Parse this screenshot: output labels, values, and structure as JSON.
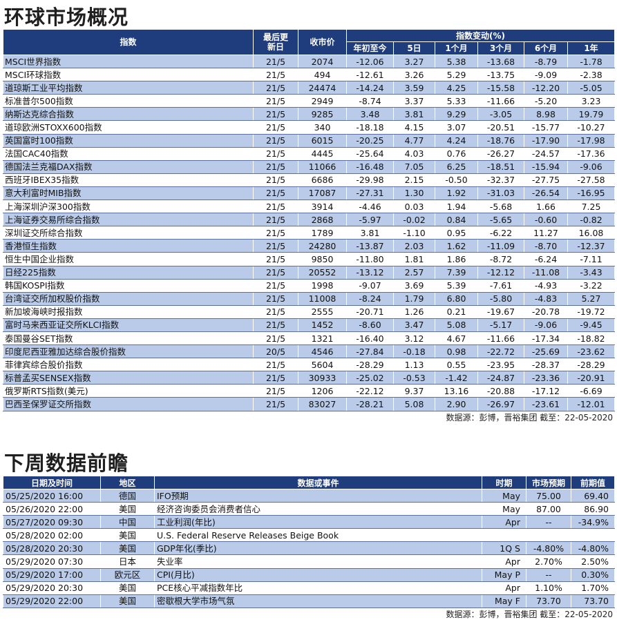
{
  "section1": {
    "title": "环球市场概况",
    "source": "数据源：彭博，晋裕集团 截至：22-05-2020",
    "headers": {
      "index": "指数",
      "last_update": "最后更新日",
      "close": "收市价",
      "change_group": "指数变动(%)",
      "ytd": "年初至今",
      "d5": "5日",
      "m1": "1个月",
      "m3": "3个月",
      "m6": "6个月",
      "y1": "1年"
    },
    "rows": [
      [
        "MSCI世界指数",
        "21/5",
        "2074",
        "-12.06",
        "3.27",
        "5.38",
        "-13.68",
        "-8.79",
        "-1.78"
      ],
      [
        "MSCI环球指数",
        "21/5",
        "494",
        "-12.61",
        "3.26",
        "5.29",
        "-13.75",
        "-9.09",
        "-2.38"
      ],
      [
        "道琼斯工业平均指数",
        "21/5",
        "24474",
        "-14.24",
        "3.59",
        "4.25",
        "-15.58",
        "-12.20",
        "-5.05"
      ],
      [
        "标准普尔500指数",
        "21/5",
        "2949",
        "-8.74",
        "3.37",
        "5.33",
        "-11.66",
        "-5.20",
        "3.23"
      ],
      [
        "纳斯达克综合指数",
        "21/5",
        "9285",
        "3.48",
        "3.81",
        "9.29",
        "-3.05",
        "8.98",
        "19.79"
      ],
      [
        "道琼欧洲STOXX600指数",
        "21/5",
        "340",
        "-18.18",
        "4.15",
        "3.07",
        "-20.51",
        "-15.77",
        "-10.27"
      ],
      [
        "英国富时100指数",
        "21/5",
        "6015",
        "-20.25",
        "4.77",
        "4.24",
        "-18.76",
        "-17.90",
        "-17.98"
      ],
      [
        "法国CAC40指数",
        "21/5",
        "4445",
        "-25.64",
        "4.03",
        "0.76",
        "-26.27",
        "-24.57",
        "-17.36"
      ],
      [
        "德国法兰克福DAX指数",
        "21/5",
        "11066",
        "-16.48",
        "7.05",
        "6.25",
        "-18.51",
        "-15.94",
        "-9.06"
      ],
      [
        "西班牙IBEX35指数",
        "21/5",
        "6686",
        "-29.98",
        "2.15",
        "-0.50",
        "-32.37",
        "-27.75",
        "-27.58"
      ],
      [
        "意大利富时MIB指数",
        "21/5",
        "17087",
        "-27.31",
        "1.30",
        "1.92",
        "-31.03",
        "-26.54",
        "-16.95"
      ],
      [
        "上海深圳沪深300指数",
        "21/5",
        "3914",
        "-4.46",
        "0.03",
        "1.94",
        "-5.68",
        "1.66",
        "7.25"
      ],
      [
        "上海证券交易所综合指数",
        "21/5",
        "2868",
        "-5.97",
        "-0.02",
        "0.84",
        "-5.65",
        "-0.60",
        "-0.82"
      ],
      [
        "深圳证交所综合指数",
        "21/5",
        "1789",
        "3.81",
        "-1.10",
        "0.95",
        "-6.22",
        "11.27",
        "16.08"
      ],
      [
        "香港恒生指数",
        "21/5",
        "24280",
        "-13.87",
        "2.03",
        "1.62",
        "-11.09",
        "-8.70",
        "-12.37"
      ],
      [
        "恒生中国企业指数",
        "21/5",
        "9850",
        "-11.80",
        "1.81",
        "1.86",
        "-8.72",
        "-6.24",
        "-7.11"
      ],
      [
        "日经225指数",
        "21/5",
        "20552",
        "-13.12",
        "2.57",
        "7.39",
        "-12.12",
        "-11.08",
        "-3.43"
      ],
      [
        "韩国KOSPI指数",
        "21/5",
        "1998",
        "-9.07",
        "3.69",
        "5.39",
        "-7.61",
        "-4.93",
        "-3.22"
      ],
      [
        "台湾证交所加权股价指数",
        "21/5",
        "11008",
        "-8.24",
        "1.79",
        "6.80",
        "-5.80",
        "-4.83",
        "5.27"
      ],
      [
        "新加坡海峡时报指数",
        "21/5",
        "2555",
        "-20.71",
        "1.26",
        "0.21",
        "-19.67",
        "-20.78",
        "-19.72"
      ],
      [
        "富时马来西亚证交所KLCI指数",
        "21/5",
        "1452",
        "-8.60",
        "3.47",
        "5.08",
        "-5.17",
        "-9.06",
        "-9.45"
      ],
      [
        "泰国曼谷SET指数",
        "21/5",
        "1321",
        "-16.40",
        "3.12",
        "4.67",
        "-11.66",
        "-17.34",
        "-18.82"
      ],
      [
        "印度尼西亚雅加达综合股价指数",
        "20/5",
        "4546",
        "-27.84",
        "-0.18",
        "0.98",
        "-22.72",
        "-25.69",
        "-23.62"
      ],
      [
        "菲律宾综合股价指数",
        "21/5",
        "5604",
        "-28.29",
        "1.13",
        "0.55",
        "-23.95",
        "-28.37",
        "-28.29"
      ],
      [
        "标普孟买SENSEX指数",
        "21/5",
        "30933",
        "-25.02",
        "-0.53",
        "-1.42",
        "-24.87",
        "-23.36",
        "-20.91"
      ],
      [
        "俄罗斯RTS指数(美元)",
        "21/5",
        "1206",
        "-22.12",
        "9.37",
        "13.16",
        "-20.88",
        "-17.12",
        "-6.69"
      ],
      [
        "巴西圣保罗证交所指数",
        "21/5",
        "83027",
        "-28.21",
        "5.08",
        "2.90",
        "-26.97",
        "-23.61",
        "-12.01"
      ]
    ]
  },
  "section2": {
    "title": "下周数据前瞻",
    "source": "数据源：彭博，晋裕集团 截至：22-05-2020",
    "headers": {
      "datetime": "日期及时间",
      "region": "地区",
      "event": "数据或事件",
      "period": "时期",
      "forecast": "市场预期",
      "previous": "前期值"
    },
    "rows": [
      [
        "05/25/2020 16:00",
        "德国",
        "IFO预期",
        "May",
        "75.00",
        "69.40"
      ],
      [
        "05/26/2020 22:00",
        "美国",
        "经济咨询委员会消费者信心",
        "May",
        "87.00",
        "86.90"
      ],
      [
        "05/27/2020 09:30",
        "中国",
        "工业利润(年比)",
        "Apr",
        "--",
        "-34.9%"
      ],
      [
        "05/28/2020 02:00",
        "美国",
        "U.S. Federal Reserve Releases Beige Book",
        "",
        "",
        ""
      ],
      [
        "05/28/2020 20:30",
        "美国",
        "GDP年化(季比)",
        "1Q S",
        "-4.80%",
        "-4.80%"
      ],
      [
        "05/29/2020 07:30",
        "日本",
        "失业率",
        "Apr",
        "2.70%",
        "2.50%"
      ],
      [
        "05/29/2020 17:00",
        "欧元区",
        "CPI(月比)",
        "May P",
        "--",
        "0.30%"
      ],
      [
        "05/29/2020 20:30",
        "美国",
        "PCE核心平减指数年比",
        "Apr",
        "1.10%",
        "1.70%"
      ],
      [
        "05/29/2020 22:00",
        "美国",
        "密歇根大学市场气氛",
        "May F",
        "73.70",
        "73.70"
      ]
    ]
  }
}
